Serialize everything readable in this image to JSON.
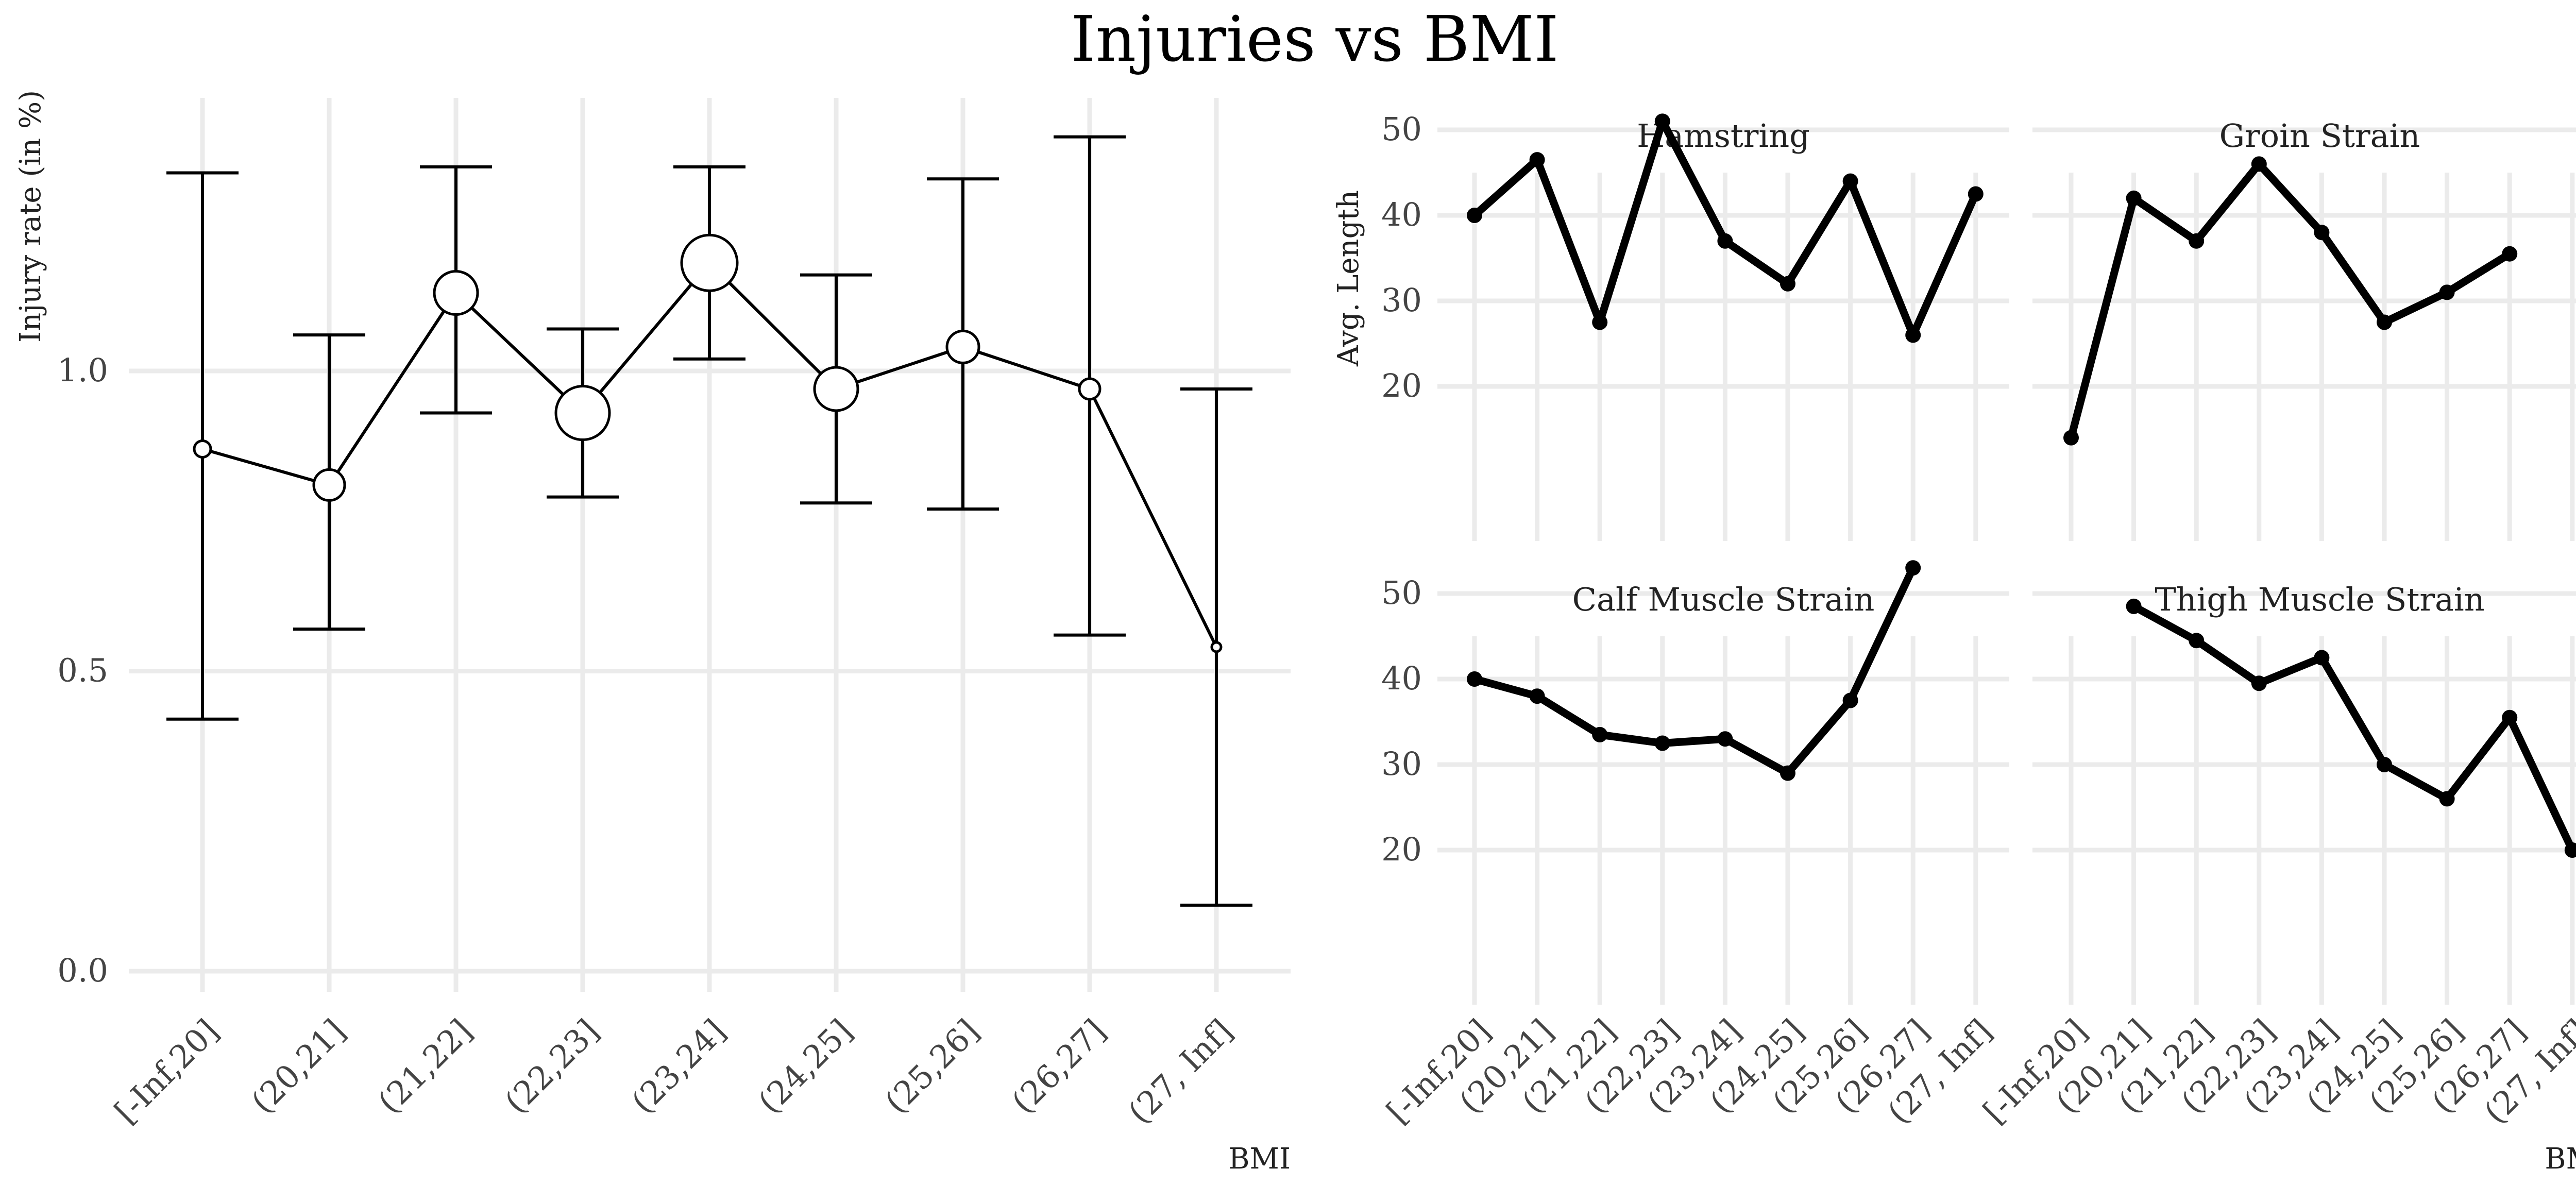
{
  "title": "Injuries vs BMI",
  "chart_data": [
    {
      "type": "line",
      "panel": "left",
      "ylabel": "Injury rate (in %)",
      "xlabel": "BMI",
      "categories": [
        "[-Inf,20]",
        "(20,21]",
        "(21,22]",
        "(22,23]",
        "(23,24]",
        "(24,25]",
        "(25,26]",
        "(26,27]",
        "(27, Inf]"
      ],
      "values": [
        0.87,
        0.81,
        1.13,
        0.93,
        1.18,
        0.97,
        1.04,
        0.97,
        0.54
      ],
      "error_low": [
        0.42,
        0.57,
        0.93,
        0.79,
        1.02,
        0.78,
        0.77,
        0.56,
        0.11
      ],
      "error_high": [
        1.33,
        1.06,
        1.34,
        1.07,
        1.34,
        1.16,
        1.32,
        1.39,
        0.97
      ],
      "point_size": [
        16,
        30,
        42,
        52,
        54,
        42,
        31,
        20,
        9
      ],
      "yticks": [
        0.0,
        0.5,
        1.0
      ],
      "ylim": [
        -0.05,
        1.45
      ],
      "grid": true
    },
    {
      "type": "line",
      "panel": "facets",
      "ylabel": "Avg. Length",
      "xlabel": "BMI",
      "categories": [
        "[-Inf,20]",
        "(20,21]",
        "(21,22]",
        "(22,23]",
        "(23,24]",
        "(24,25]",
        "(25,26]",
        "(26,27]",
        "(27, Inf]"
      ],
      "yticks": [
        20,
        30,
        40,
        50
      ],
      "ylim": [
        12,
        55
      ],
      "grid": true,
      "facets": [
        {
          "name": "Hamstring",
          "values": [
            40,
            46.5,
            27.5,
            51,
            37,
            32,
            44,
            26,
            42.5
          ]
        },
        {
          "name": "Groin Strain",
          "values": [
            14,
            42,
            37,
            46,
            38,
            27.5,
            31,
            35.5,
            null
          ]
        },
        {
          "name": "Calf Muscle Strain",
          "values": [
            40,
            38,
            33.5,
            32.5,
            33,
            29,
            37.5,
            53,
            null
          ]
        },
        {
          "name": "Thigh Muscle Strain",
          "values": [
            null,
            48.5,
            44.5,
            39.5,
            42.5,
            30,
            26,
            35.5,
            20
          ]
        }
      ]
    }
  ]
}
